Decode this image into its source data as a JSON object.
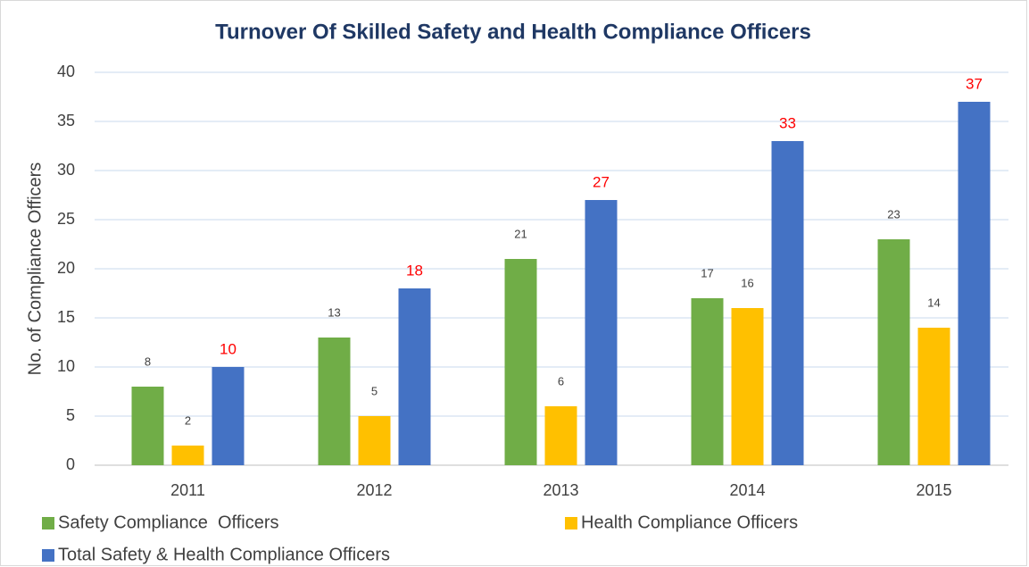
{
  "chart_data": {
    "type": "bar",
    "title": "Turnover Of Skilled Safety and Health Compliance Officers",
    "ylabel": "No. of Compliance Officers",
    "categories": [
      "2011",
      "2012",
      "2013",
      "2014",
      "2015"
    ],
    "series": [
      {
        "name": "Safety Compliance  Officers",
        "color": "#70ad47",
        "label_color": "#404040",
        "values": [
          8,
          13,
          21,
          17,
          23
        ]
      },
      {
        "name": "Health Compliance Officers",
        "color": "#ffc000",
        "label_color": "#404040",
        "values": [
          2,
          5,
          6,
          16,
          14
        ]
      },
      {
        "name": "Total Safety & Health Compliance Officers",
        "color": "#4472c4",
        "label_color": "#ff0000",
        "values": [
          10,
          18,
          27,
          33,
          37
        ]
      }
    ],
    "ylim": [
      0,
      40
    ],
    "yticks": [
      0,
      5,
      10,
      15,
      20,
      25,
      30,
      35,
      40
    ],
    "grid": true,
    "legend": "bottom"
  }
}
